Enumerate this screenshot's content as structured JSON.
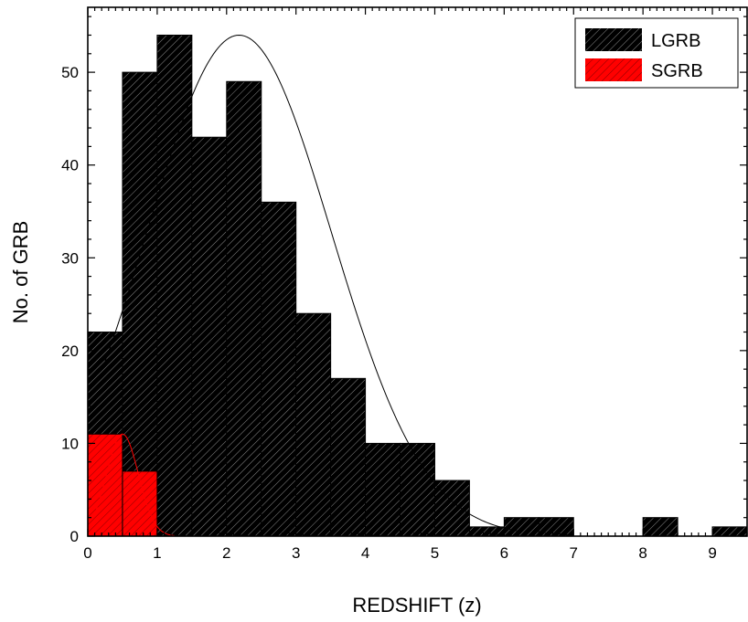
{
  "chart_data": {
    "type": "bar",
    "xlabel": "REDSHIFT (z)",
    "ylabel": "No. of GRB",
    "xlim": [
      0,
      9.5
    ],
    "ylim": [
      0,
      57
    ],
    "x_ticks": [
      0,
      1,
      2,
      3,
      4,
      5,
      6,
      7,
      8,
      9
    ],
    "y_ticks": [
      0,
      10,
      20,
      30,
      40,
      50
    ],
    "bin_width": 0.5,
    "series": [
      {
        "name": "LGRB",
        "color": "#000000",
        "hatch": "diagonal",
        "bin_starts": [
          0,
          0.5,
          1.0,
          1.5,
          2.0,
          2.5,
          3.0,
          3.5,
          4.0,
          4.5,
          5.0,
          5.5,
          6.0,
          6.5,
          7.0,
          7.5,
          8.0,
          8.5,
          9.0
        ],
        "values": [
          22,
          50,
          54,
          43,
          49,
          36,
          24,
          17,
          10,
          10,
          6,
          1,
          2,
          2,
          0,
          0,
          2,
          0,
          1
        ]
      },
      {
        "name": "SGRB",
        "color": "#ff0000",
        "hatch": "diagonal",
        "bin_starts": [
          0,
          0.5
        ],
        "values": [
          11,
          7
        ]
      }
    ],
    "fits": [
      {
        "series": "LGRB",
        "type": "gaussian",
        "amplitude": 54,
        "center": 2.18,
        "sigma": 1.33,
        "x_range": [
          0.25,
          6.2
        ],
        "color": "#000000"
      },
      {
        "series": "SGRB",
        "type": "gaussian",
        "amplitude": 11,
        "center": 0.5,
        "sigma": 0.23,
        "x_range": [
          0.1,
          1.25
        ],
        "color": "#ff0000"
      }
    ],
    "legend": {
      "position": "top-right",
      "entries": [
        "LGRB",
        "SGRB"
      ]
    },
    "grid": false
  }
}
